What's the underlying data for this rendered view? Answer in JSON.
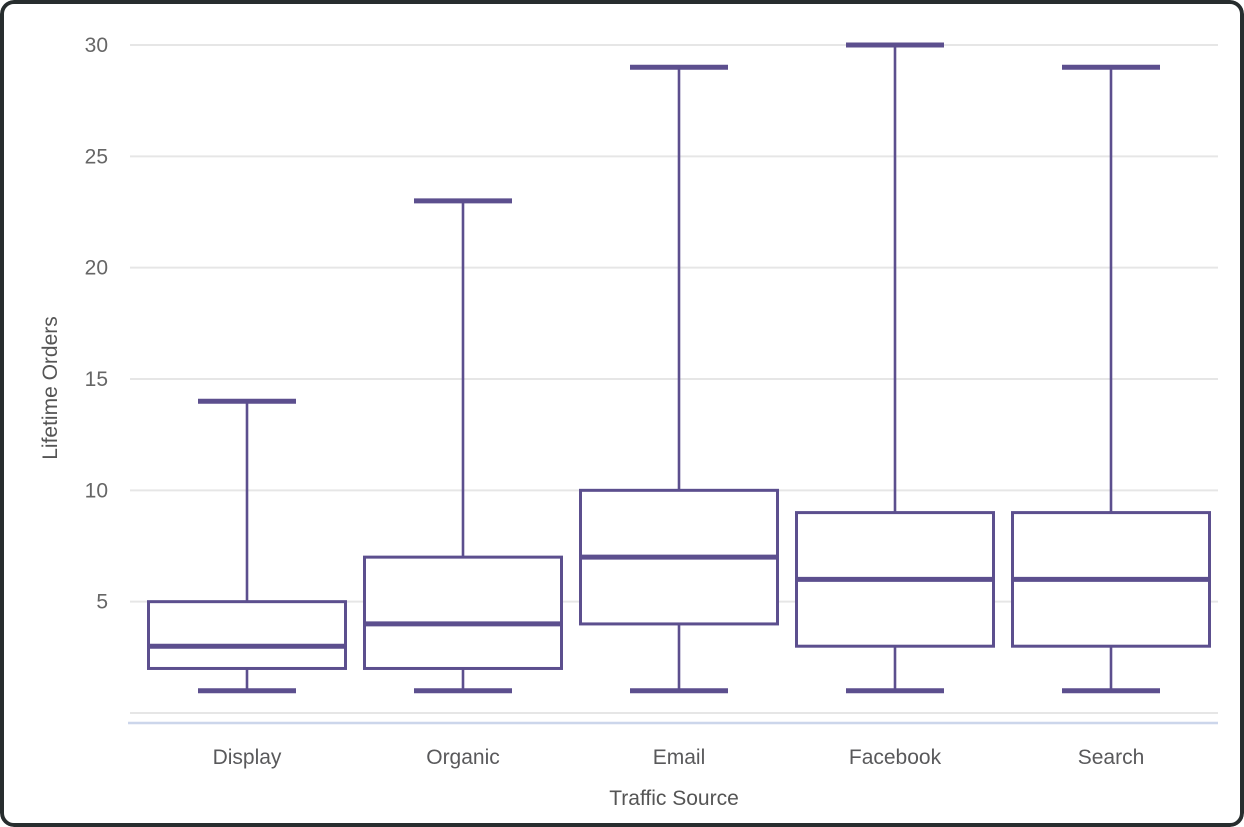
{
  "window": {
    "background": "#ffffff",
    "frame_color": "#272d2e"
  },
  "chart_data": {
    "type": "boxplot",
    "title": "",
    "xlabel": "Traffic Source",
    "ylabel": "Lifetime Orders",
    "categories": [
      "Display",
      "Organic",
      "Email",
      "Facebook",
      "Search"
    ],
    "points": [
      {
        "category": "Display",
        "low": 1,
        "q1": 2,
        "median": 3,
        "q3": 5,
        "high": 14
      },
      {
        "category": "Organic",
        "low": 1,
        "q1": 2,
        "median": 4,
        "q3": 7,
        "high": 23
      },
      {
        "category": "Email",
        "low": 1,
        "q1": 4,
        "median": 7,
        "q3": 10,
        "high": 29
      },
      {
        "category": "Facebook",
        "low": 1,
        "q1": 3,
        "median": 6,
        "q3": 9,
        "high": 30
      },
      {
        "category": "Search",
        "low": 1,
        "q1": 3,
        "median": 6,
        "q3": 9,
        "high": 29
      }
    ],
    "yticks": [
      5,
      10,
      15,
      20,
      25,
      30
    ],
    "ylim": [
      0,
      31
    ],
    "grid": true,
    "legend": "none",
    "colors": {
      "box_stroke": "#5c4f8e",
      "box_fill": "#ffffff",
      "gridline": "#e6e6e6",
      "baseline": "#ccd6eb",
      "tick_label": "#666666",
      "category_label": "#59595b",
      "axis_title": "#555555"
    }
  }
}
